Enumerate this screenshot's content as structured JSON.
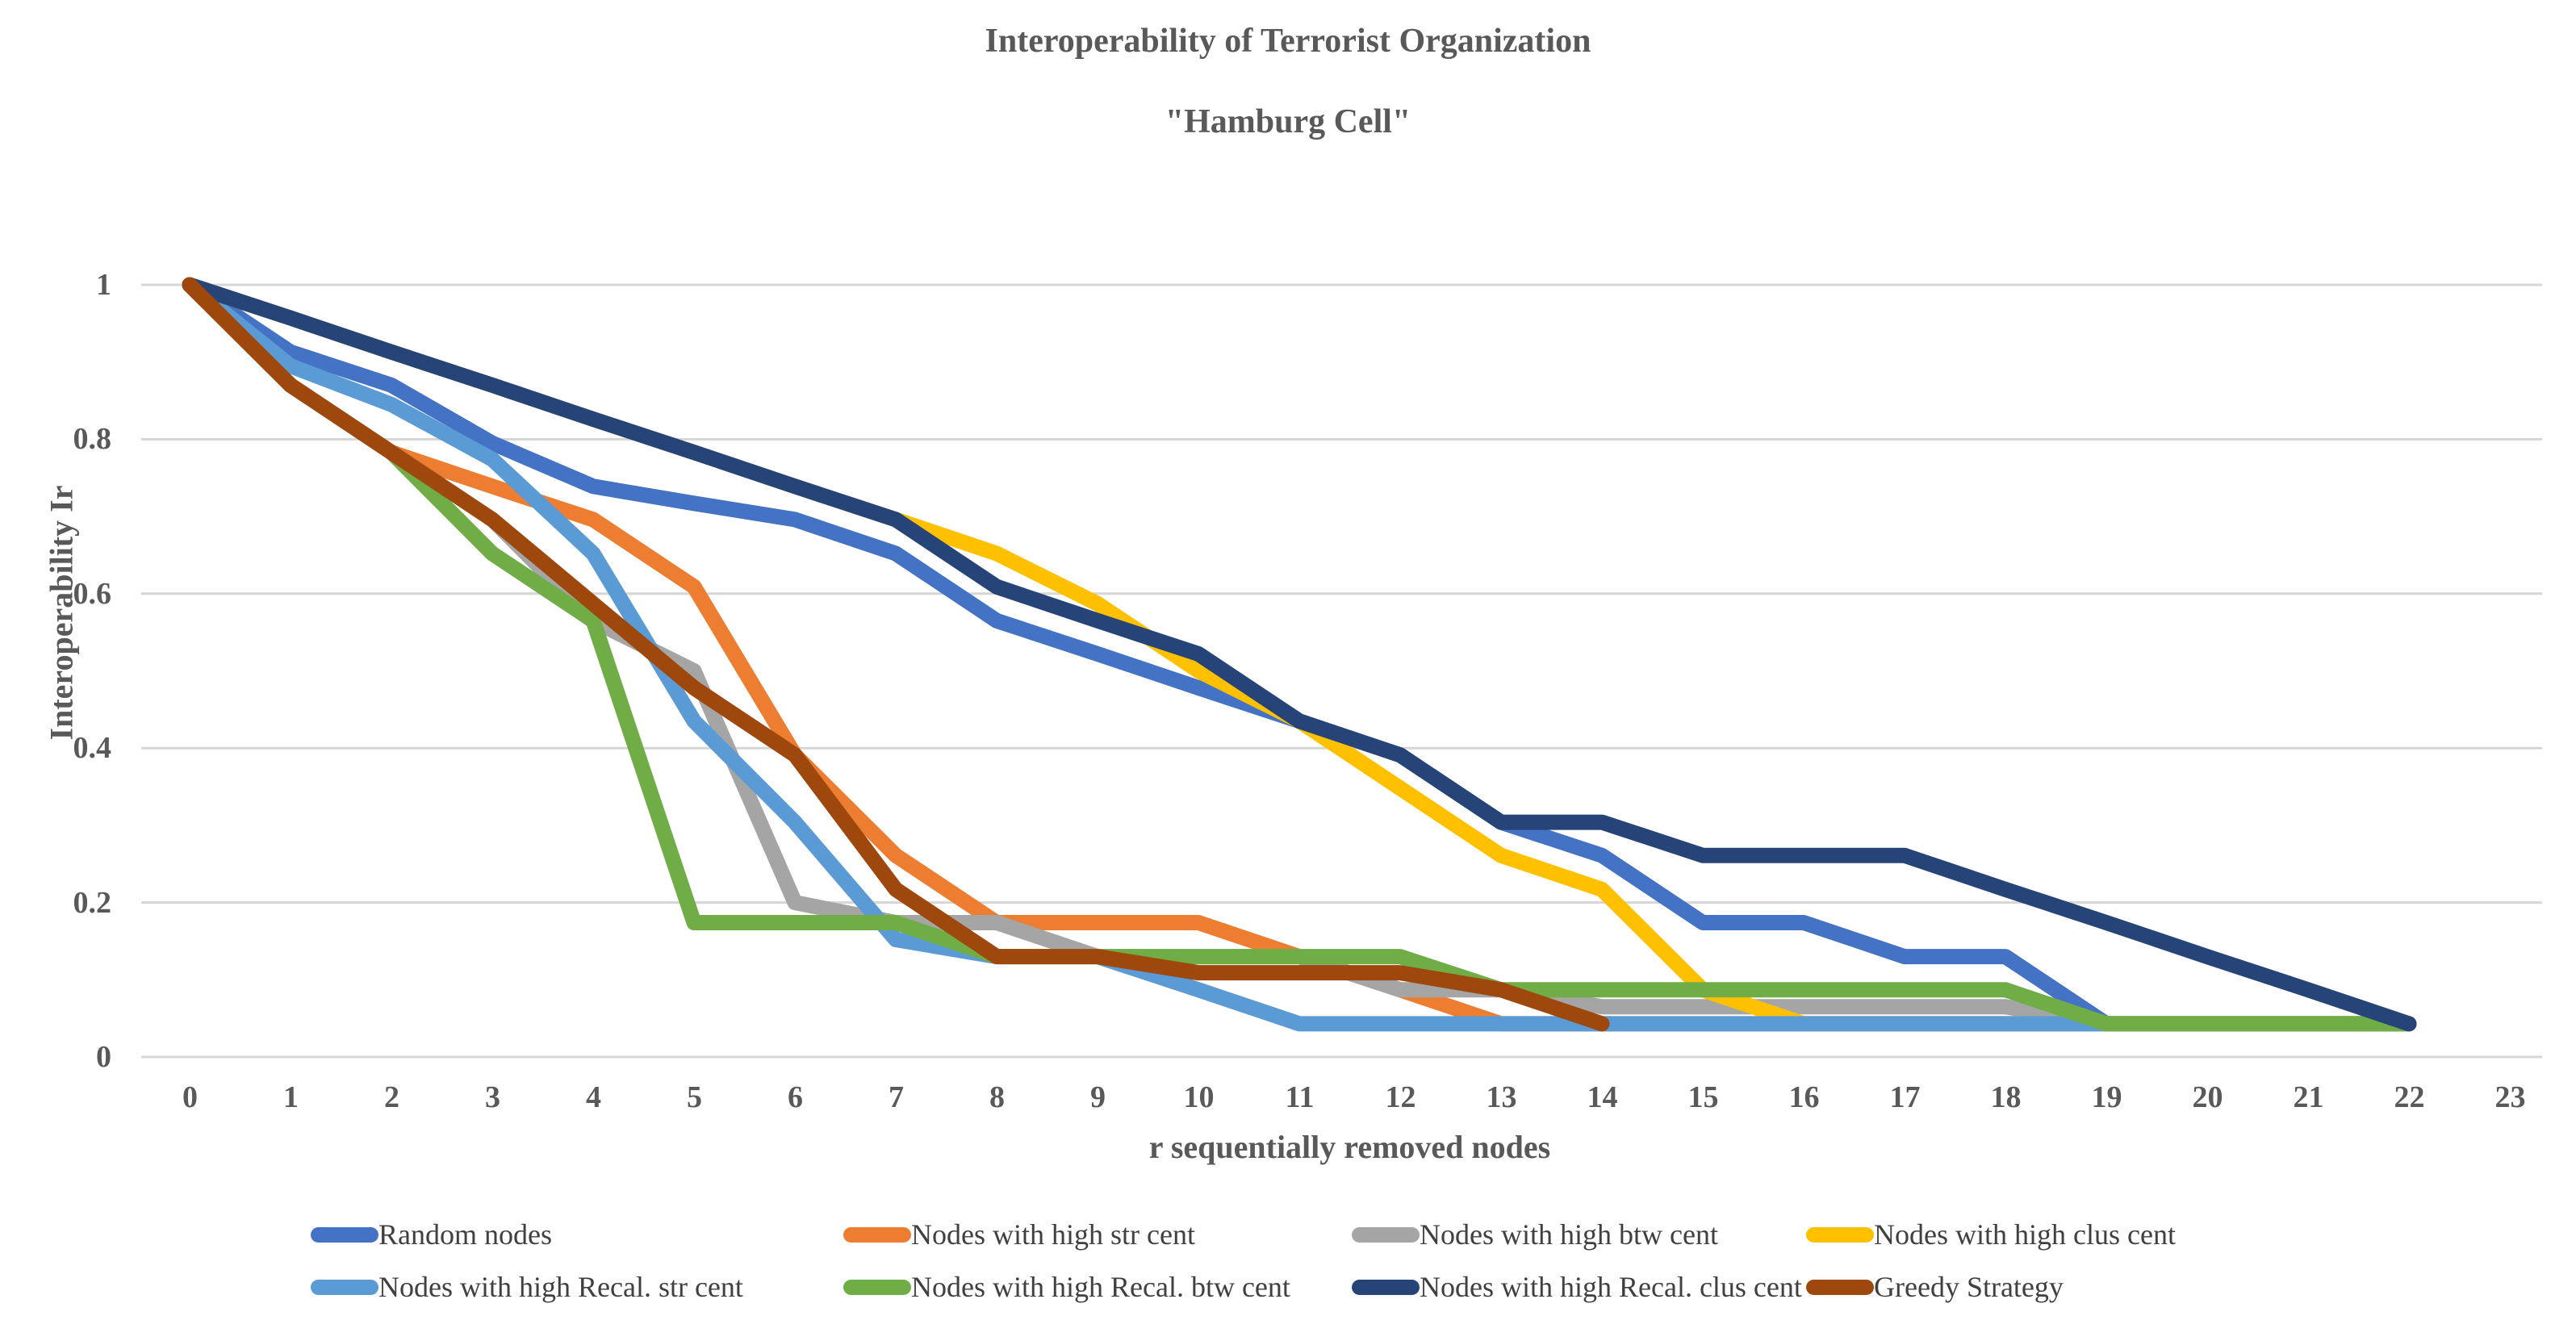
{
  "title": {
    "line1": "Interoperability of Terrorist Organization",
    "line2": "\"Hamburg Cell\""
  },
  "axes": {
    "y_label": "Interoperability Ir",
    "x_label": "r sequentially removed nodes",
    "y_ticks": [
      {
        "label": "1",
        "value": 1.0
      },
      {
        "label": "0.8",
        "value": 0.8
      },
      {
        "label": "0.6",
        "value": 0.6
      },
      {
        "label": "0.4",
        "value": 0.4
      },
      {
        "label": "0.2",
        "value": 0.2
      },
      {
        "label": "0",
        "value": 0.0
      }
    ],
    "x_ticks": [
      "0",
      "1",
      "2",
      "3",
      "4",
      "5",
      "6",
      "7",
      "8",
      "9",
      "10",
      "11",
      "12",
      "13",
      "14",
      "15",
      "16",
      "17",
      "18",
      "19",
      "20",
      "21",
      "22",
      "23"
    ]
  },
  "colors": {
    "background": "#FFFFFF",
    "gridline": "#D6D6D6",
    "axis_text": "#595959",
    "legend_text": "#404040"
  },
  "chart_data": {
    "type": "line",
    "x": [
      0,
      1,
      2,
      3,
      4,
      5,
      6,
      7,
      8,
      9,
      10,
      11,
      12,
      13,
      14,
      15,
      16,
      17,
      18,
      19,
      20,
      21,
      22
    ],
    "xlabel": "r sequentially removed nodes",
    "ylabel": "Interoperability Ir",
    "ylim": [
      0,
      1
    ],
    "x_axis_range": [
      0,
      23
    ],
    "grid": "horizontal",
    "legend_position": "bottom",
    "series": [
      {
        "id": "random-nodes",
        "name": "Random nodes",
        "color": "#4472C4",
        "values": [
          1,
          0.913,
          0.87,
          0.795,
          0.739,
          0.717,
          0.696,
          0.652,
          0.565,
          0.522,
          0.478,
          0.435,
          0.391,
          0.304,
          0.261,
          0.174,
          0.174,
          0.13,
          0.13,
          0.043,
          0.043,
          0.043,
          0.043
        ]
      },
      {
        "id": "high-str-cent",
        "name": "Nodes with high str cent",
        "color": "#ED7D31",
        "values": [
          1,
          0.87,
          0.783,
          0.739,
          0.696,
          0.609,
          0.391,
          0.261,
          0.174,
          0.174,
          0.174,
          0.13,
          0.087,
          0.043,
          0.043,
          0.043,
          0.043,
          0.043,
          0.043,
          0.043,
          0.043,
          0.043,
          0.043
        ]
      },
      {
        "id": "high-btw-cent",
        "name": "Nodes with high btw cent",
        "color": "#A5A5A5",
        "values": [
          1,
          0.87,
          0.783,
          0.696,
          0.565,
          0.5,
          0.2,
          0.174,
          0.174,
          0.13,
          0.13,
          0.13,
          0.087,
          0.087,
          0.065,
          0.065,
          0.065,
          0.065,
          0.065,
          0.043,
          0.043,
          0.043,
          0.043
        ]
      },
      {
        "id": "high-clus-cent",
        "name": "Nodes with high clus cent",
        "color": "#FFC000",
        "values": [
          1,
          0.957,
          0.913,
          0.87,
          0.826,
          0.783,
          0.739,
          0.696,
          0.652,
          0.587,
          0.5,
          0.435,
          0.348,
          0.261,
          0.217,
          0.087,
          0.043,
          0.043,
          0.043,
          0.043,
          0.043,
          0.043,
          0.043
        ]
      },
      {
        "id": "high-recal-str-cent",
        "name": "Nodes with high Recal. str cent",
        "color": "#5B9BD5",
        "values": [
          1,
          0.895,
          0.845,
          0.774,
          0.652,
          0.435,
          0.304,
          0.152,
          0.13,
          0.13,
          0.087,
          0.043,
          0.043,
          0.043,
          0.043,
          0.043,
          0.043,
          0.043,
          0.043,
          0.043,
          0.043,
          0.043,
          0.043
        ]
      },
      {
        "id": "high-recal-btw-cent",
        "name": "Nodes with high Recal. btw cent",
        "color": "#70AD47",
        "values": [
          1,
          0.87,
          0.783,
          0.652,
          0.565,
          0.174,
          0.174,
          0.174,
          0.13,
          0.13,
          0.13,
          0.13,
          0.13,
          0.087,
          0.087,
          0.087,
          0.087,
          0.087,
          0.087,
          0.043,
          0.043,
          0.043,
          0.043
        ]
      },
      {
        "id": "high-recal-clus-cent",
        "name": "Nodes with high Recal. clus cent",
        "color": "#264478",
        "values": [
          1,
          0.957,
          0.913,
          0.87,
          0.826,
          0.783,
          0.739,
          0.696,
          0.609,
          0.565,
          0.522,
          0.435,
          0.391,
          0.304,
          0.304,
          0.261,
          0.261,
          0.261,
          0.217,
          0.174,
          0.13,
          0.087,
          0.043
        ]
      },
      {
        "id": "greedy-strategy",
        "name": "Greedy Strategy",
        "color": "#9E480E",
        "values": [
          1,
          0.87,
          0.783,
          0.696,
          0.587,
          0.478,
          0.391,
          0.217,
          0.13,
          0.13,
          0.109,
          0.109,
          0.109,
          0.087,
          0.043,
          null,
          null,
          null,
          null,
          null,
          null,
          null,
          null
        ]
      }
    ]
  },
  "legend": {
    "rows": [
      [
        "Random nodes",
        "Nodes with high str cent",
        "Nodes with high btw cent",
        "Nodes with high clus cent"
      ],
      [
        "Nodes with high Recal. str cent",
        "Nodes with high Recal. btw cent",
        "Nodes with high Recal. clus cent",
        "Greedy Strategy"
      ]
    ]
  }
}
